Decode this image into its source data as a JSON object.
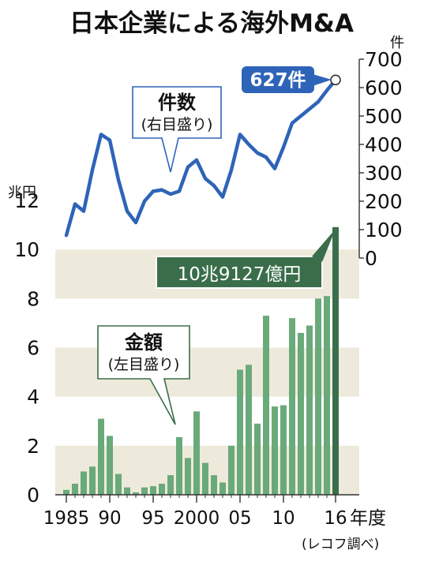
{
  "title": "日本企業による海外M&A",
  "source": "(レコフ調べ)",
  "chart_data": {
    "type": "bar+line",
    "x": [
      1985,
      1986,
      1987,
      1988,
      1989,
      1990,
      1991,
      1992,
      1993,
      1994,
      1995,
      1996,
      1997,
      1998,
      1999,
      2000,
      2001,
      2002,
      2003,
      2004,
      2005,
      2006,
      2007,
      2008,
      2009,
      2010,
      2011,
      2012,
      2013,
      2014,
      2015,
      2016
    ],
    "x_tick_labels": [
      {
        "x": 1985,
        "label": "1985"
      },
      {
        "x": 1990,
        "label": "90"
      },
      {
        "x": 1995,
        "label": "95"
      },
      {
        "x": 2000,
        "label": "2000"
      },
      {
        "x": 2005,
        "label": "05"
      },
      {
        "x": 2010,
        "label": "10"
      },
      {
        "x": 2016,
        "label": "16"
      }
    ],
    "x_unit": "年度",
    "series": [
      {
        "name": "金額",
        "type": "bar",
        "axis": "left",
        "values": [
          0.2,
          0.45,
          0.95,
          1.15,
          3.1,
          2.4,
          0.85,
          0.3,
          0.1,
          0.3,
          0.35,
          0.45,
          0.8,
          2.35,
          1.5,
          3.4,
          1.3,
          0.8,
          0.5,
          2.0,
          5.1,
          5.3,
          2.9,
          7.3,
          3.6,
          3.65,
          7.2,
          6.6,
          6.9,
          8.0,
          8.1,
          10.9127
        ]
      },
      {
        "name": "件数",
        "type": "line",
        "axis": "right",
        "values": [
          80,
          190,
          165,
          310,
          435,
          415,
          275,
          165,
          125,
          200,
          235,
          240,
          225,
          235,
          320,
          345,
          280,
          255,
          215,
          310,
          435,
          400,
          370,
          355,
          315,
          390,
          475,
          500,
          525,
          550,
          590,
          627
        ]
      }
    ],
    "left_axis": {
      "unit": "兆円",
      "ylim": [
        0,
        12
      ],
      "ticks": [
        0,
        2,
        4,
        6,
        8,
        10,
        12
      ]
    },
    "right_axis": {
      "unit": "件",
      "ylim": [
        0,
        700
      ],
      "ticks": [
        0,
        100,
        200,
        300,
        400,
        500,
        600,
        700
      ]
    },
    "grid_bands": true,
    "annotations": {
      "count_callout": {
        "title": "件数",
        "subtitle": "(右目盛り)"
      },
      "amount_callout": {
        "title": "金額",
        "subtitle": "(左目盛り)"
      },
      "last_count_label": "627件",
      "last_amount_label": "10兆9127億円"
    },
    "colors": {
      "bar": "#6aaa7a",
      "bar_last": "#3a6e4b",
      "line": "#2e64b8",
      "band": "#eeeadb",
      "count_label_bg": "#2e64b8",
      "amount_label_bg": "#3a6e4b"
    }
  }
}
